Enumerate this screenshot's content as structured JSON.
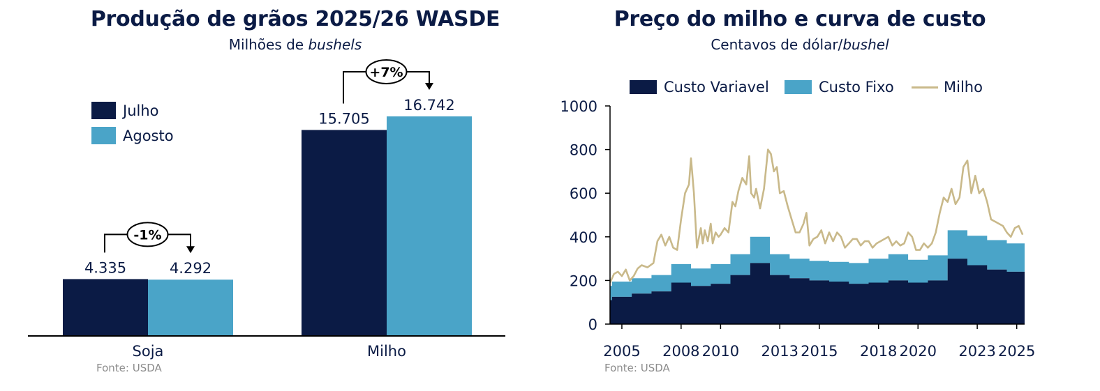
{
  "colors": {
    "navy": "#0b1b45",
    "light_blue": "#4aa4c8",
    "gold": "#c9b98a",
    "source_gray": "#8c8c8c"
  },
  "left_chart": {
    "title": "Produção de grãos 2025/26  WASDE",
    "subtitle_pre": "Milhões de ",
    "subtitle_italic": "bushels",
    "source": "Fonte: USDA",
    "legend": [
      "Julho",
      "Agosto"
    ],
    "annotations": {
      "soja": "-1%",
      "milho": "+7%"
    }
  },
  "right_chart": {
    "title": "Preço do milho e curva de custo",
    "subtitle_pre": "Centavos de dólar/",
    "subtitle_italic": "bushel",
    "source": "Fonte: USDA",
    "legend": [
      "Custo Variavel",
      "Custo Fixo",
      "Milho"
    ]
  },
  "chart_data": [
    {
      "type": "bar",
      "title": "Produção de grãos 2025/26  WASDE",
      "subtitle": "Milhões de bushels",
      "categories": [
        "Soja",
        "Milho"
      ],
      "series": [
        {
          "name": "Julho",
          "values": [
            4335,
            15705
          ],
          "labels": [
            "4.335",
            "15.705"
          ],
          "color": "#0b1b45"
        },
        {
          "name": "Agosto",
          "values": [
            4292,
            16742
          ],
          "labels": [
            "4.292",
            "16.742"
          ],
          "color": "#4aa4c8"
        }
      ],
      "annotations": [
        {
          "category": "Soja",
          "text": "-1%"
        },
        {
          "category": "Milho",
          "text": "+7%"
        }
      ],
      "ylim": [
        0,
        18500
      ],
      "grid": false,
      "legend_position": "top-left"
    },
    {
      "type": "area",
      "title": "Preço do milho e curva de custo",
      "subtitle": "Centavos de dólar/bushel",
      "xlim": [
        2004.4,
        2025.4
      ],
      "ylim": [
        0,
        1000
      ],
      "x_ticks": [
        2005,
        2008,
        2010,
        2013,
        2015,
        2018,
        2020,
        2023,
        2025
      ],
      "y_ticks": [
        0,
        200,
        400,
        600,
        800,
        1000
      ],
      "grid": false,
      "legend_position": "top",
      "series": [
        {
          "name": "Custo Variavel",
          "type": "step-area",
          "color": "#0b1b45",
          "x": [
            2004.4,
            2004.5,
            2005.5,
            2006.5,
            2007.5,
            2008.5,
            2009.5,
            2010.5,
            2011.5,
            2012.5,
            2013.5,
            2014.5,
            2015.5,
            2016.5,
            2017.5,
            2018.5,
            2019.5,
            2020.5,
            2021.5,
            2022.5,
            2023.5,
            2024.5,
            2025.4
          ],
          "y": [
            110,
            125,
            140,
            150,
            190,
            175,
            185,
            225,
            280,
            225,
            210,
            200,
            195,
            185,
            190,
            200,
            190,
            200,
            300,
            270,
            250,
            240,
            240
          ]
        },
        {
          "name": "Custo Fixo",
          "type": "step-area",
          "stacked_on": "Custo Variavel",
          "color": "#4aa4c8",
          "x": [
            2004.4,
            2004.5,
            2005.5,
            2006.5,
            2007.5,
            2008.5,
            2009.5,
            2010.5,
            2011.5,
            2012.5,
            2013.5,
            2014.5,
            2015.5,
            2016.5,
            2017.5,
            2018.5,
            2019.5,
            2020.5,
            2021.5,
            2022.5,
            2023.5,
            2024.5,
            2025.4
          ],
          "y": [
            65,
            70,
            70,
            75,
            85,
            80,
            90,
            95,
            120,
            95,
            90,
            90,
            90,
            95,
            110,
            120,
            105,
            115,
            130,
            135,
            135,
            130,
            130
          ]
        },
        {
          "name": "Milho",
          "type": "line",
          "color": "#c9b98a",
          "x": [
            2004.4,
            2004.6,
            2004.8,
            2005.0,
            2005.2,
            2005.4,
            2005.6,
            2005.8,
            2006.0,
            2006.3,
            2006.6,
            2006.8,
            2007.0,
            2007.2,
            2007.4,
            2007.6,
            2007.8,
            2008.0,
            2008.2,
            2008.4,
            2008.5,
            2008.65,
            2008.8,
            2009.0,
            2009.1,
            2009.2,
            2009.35,
            2009.5,
            2009.6,
            2009.75,
            2009.9,
            2010.0,
            2010.2,
            2010.4,
            2010.6,
            2010.75,
            2010.9,
            2011.1,
            2011.3,
            2011.45,
            2011.55,
            2011.7,
            2011.8,
            2012.0,
            2012.2,
            2012.4,
            2012.55,
            2012.7,
            2012.85,
            2013.0,
            2013.2,
            2013.4,
            2013.6,
            2013.8,
            2014.0,
            2014.2,
            2014.35,
            2014.5,
            2014.7,
            2014.9,
            2015.1,
            2015.3,
            2015.5,
            2015.7,
            2015.9,
            2016.1,
            2016.3,
            2016.5,
            2016.7,
            2016.9,
            2017.1,
            2017.3,
            2017.5,
            2017.7,
            2017.9,
            2018.1,
            2018.3,
            2018.5,
            2018.7,
            2018.9,
            2019.1,
            2019.3,
            2019.5,
            2019.7,
            2019.9,
            2020.1,
            2020.3,
            2020.5,
            2020.7,
            2020.9,
            2021.1,
            2021.3,
            2021.5,
            2021.7,
            2021.9,
            2022.1,
            2022.3,
            2022.5,
            2022.7,
            2022.9,
            2023.1,
            2023.3,
            2023.5,
            2023.7,
            2023.9,
            2024.1,
            2024.3,
            2024.5,
            2024.7,
            2024.9,
            2025.1,
            2025.3
          ],
          "y": [
            190,
            230,
            240,
            220,
            250,
            200,
            220,
            255,
            270,
            260,
            280,
            380,
            410,
            360,
            400,
            350,
            340,
            480,
            600,
            640,
            760,
            600,
            350,
            440,
            370,
            430,
            380,
            460,
            370,
            420,
            400,
            410,
            440,
            420,
            560,
            540,
            610,
            670,
            640,
            770,
            600,
            580,
            620,
            530,
            620,
            800,
            780,
            700,
            720,
            600,
            610,
            540,
            480,
            420,
            420,
            460,
            510,
            360,
            390,
            400,
            430,
            370,
            420,
            380,
            420,
            400,
            350,
            370,
            390,
            390,
            360,
            380,
            380,
            350,
            370,
            380,
            390,
            400,
            360,
            380,
            360,
            370,
            420,
            400,
            340,
            340,
            370,
            350,
            370,
            420,
            510,
            580,
            560,
            620,
            550,
            580,
            720,
            750,
            600,
            680,
            600,
            620,
            560,
            480,
            470,
            460,
            450,
            420,
            400,
            440,
            450,
            410
          ]
        }
      ]
    }
  ]
}
